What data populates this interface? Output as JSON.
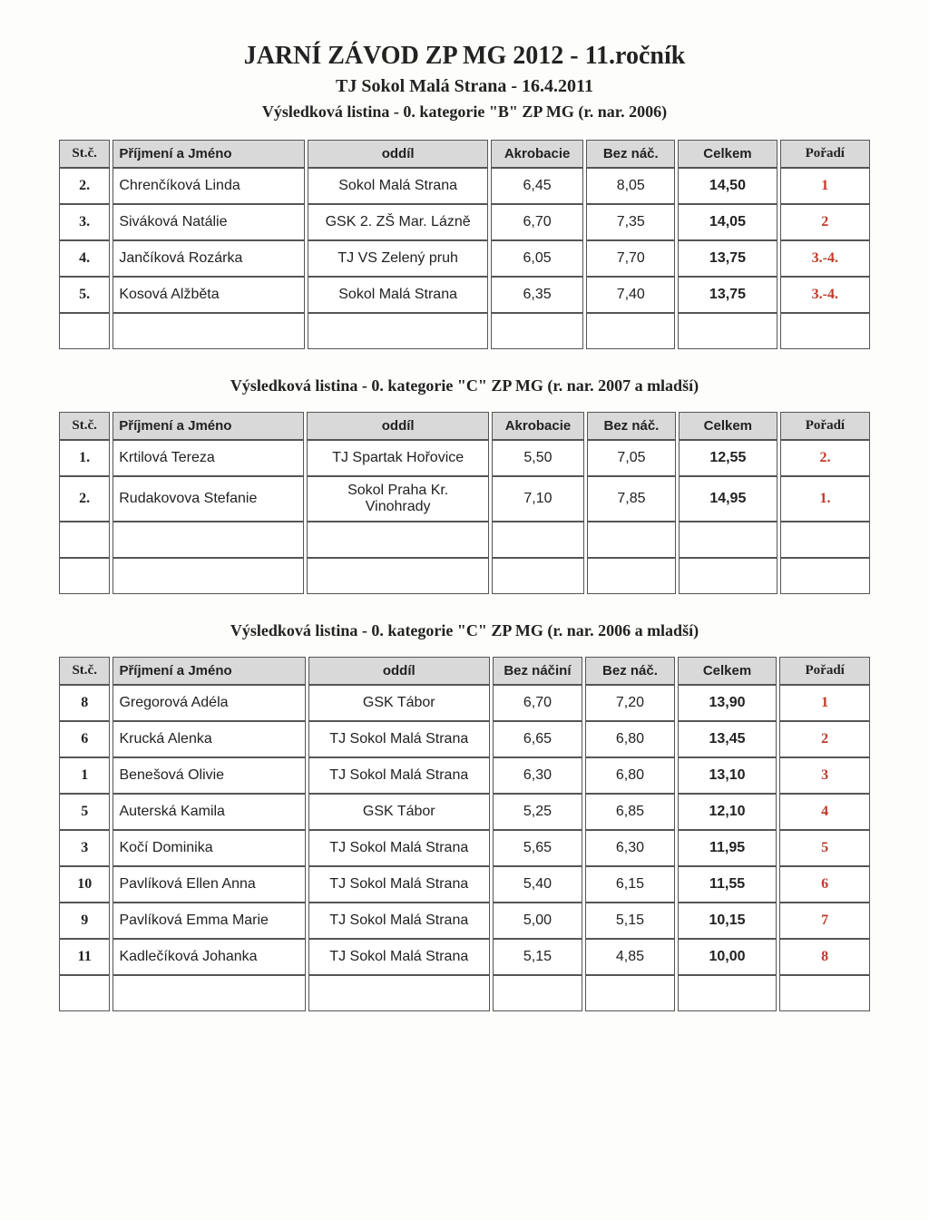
{
  "header": {
    "main_title": "JARNÍ ZÁVOD ZP MG 2012 - 11.ročník",
    "subtitle": "TJ Sokol Malá Strana - 16.4.2011",
    "category_line": "Výsledková listina - 0. kategorie \"B\" ZP MG (r. nar. 2006)"
  },
  "column_labels": {
    "st": "St.č.",
    "name": "Příjmení a Jméno",
    "club": "oddíl",
    "akrobacie": "Akrobacie",
    "beznacini": "Bez náčiní",
    "beznac": "Bez náč.",
    "celkem": "Celkem",
    "poradi": "Pořadí"
  },
  "rank_color": "#c0392b",
  "header_bg": "#d9d9d9",
  "section1": {
    "heading": null,
    "score1_label": "Akrobacie",
    "empty_rows": 1,
    "rows": [
      {
        "st": "2.",
        "name": "Chrenčíková Linda",
        "club": "Sokol Malá Strana",
        "s1": "6,45",
        "s2": "8,05",
        "tot": "14,50",
        "rank": "1"
      },
      {
        "st": "3.",
        "name": "Siváková Natálie",
        "club": "GSK 2. ZŠ Mar. Lázně",
        "s1": "6,70",
        "s2": "7,35",
        "tot": "14,05",
        "rank": "2"
      },
      {
        "st": "4.",
        "name": "Jančíková Rozárka",
        "club": "TJ VS Zelený pruh",
        "s1": "6,05",
        "s2": "7,70",
        "tot": "13,75",
        "rank": "3.-4."
      },
      {
        "st": "5.",
        "name": "Kosová Alžběta",
        "club": "Sokol Malá Strana",
        "s1": "6,35",
        "s2": "7,40",
        "tot": "13,75",
        "rank": "3.-4."
      }
    ]
  },
  "section2": {
    "heading": "Výsledková listina  - 0. kategorie \"C\" ZP MG (r. nar. 2007 a mladší)",
    "score1_label": "Akrobacie",
    "empty_rows": 2,
    "rows": [
      {
        "st": "1.",
        "name": "Krtilová Tereza",
        "club": "TJ Spartak Hořovice",
        "s1": "5,50",
        "s2": "7,05",
        "tot": "12,55",
        "rank": "2."
      },
      {
        "st": "2.",
        "name": "Rudakovova Stefanie",
        "club": "Sokol Praha Kr. Vinohrady",
        "s1": "7,10",
        "s2": "7,85",
        "tot": "14,95",
        "rank": "1."
      }
    ]
  },
  "section3": {
    "heading": "Výsledková listina  - 0. kategorie \"C\" ZP MG (r. nar. 2006 a mladší)",
    "score1_label": "Bez náčiní",
    "empty_rows": 1,
    "rows": [
      {
        "st": "8",
        "name": "Gregorová Adéla",
        "club": "GSK Tábor",
        "s1": "6,70",
        "s2": "7,20",
        "tot": "13,90",
        "rank": "1"
      },
      {
        "st": "6",
        "name": "Krucká Alenka",
        "club": "TJ Sokol Malá Strana",
        "s1": "6,65",
        "s2": "6,80",
        "tot": "13,45",
        "rank": "2"
      },
      {
        "st": "1",
        "name": "Benešová Olivie",
        "club": "TJ Sokol Malá Strana",
        "s1": "6,30",
        "s2": "6,80",
        "tot": "13,10",
        "rank": "3"
      },
      {
        "st": "5",
        "name": "Auterská Kamila",
        "club": "GSK Tábor",
        "s1": "5,25",
        "s2": "6,85",
        "tot": "12,10",
        "rank": "4"
      },
      {
        "st": "3",
        "name": "Kočí Dominika",
        "club": "TJ Sokol Malá Strana",
        "s1": "5,65",
        "s2": "6,30",
        "tot": "11,95",
        "rank": "5"
      },
      {
        "st": "10",
        "name": "Pavlíková Ellen Anna",
        "club": "TJ Sokol Malá Strana",
        "s1": "5,40",
        "s2": "6,15",
        "tot": "11,55",
        "rank": "6"
      },
      {
        "st": "9",
        "name": "Pavlíková Emma Marie",
        "club": "TJ Sokol Malá Strana",
        "s1": "5,00",
        "s2": "5,15",
        "tot": "10,15",
        "rank": "7"
      },
      {
        "st": "11",
        "name": "Kadlečíková Johanka",
        "club": "TJ Sokol Malá Strana",
        "s1": "5,15",
        "s2": "4,85",
        "tot": "10,00",
        "rank": "8"
      }
    ]
  }
}
